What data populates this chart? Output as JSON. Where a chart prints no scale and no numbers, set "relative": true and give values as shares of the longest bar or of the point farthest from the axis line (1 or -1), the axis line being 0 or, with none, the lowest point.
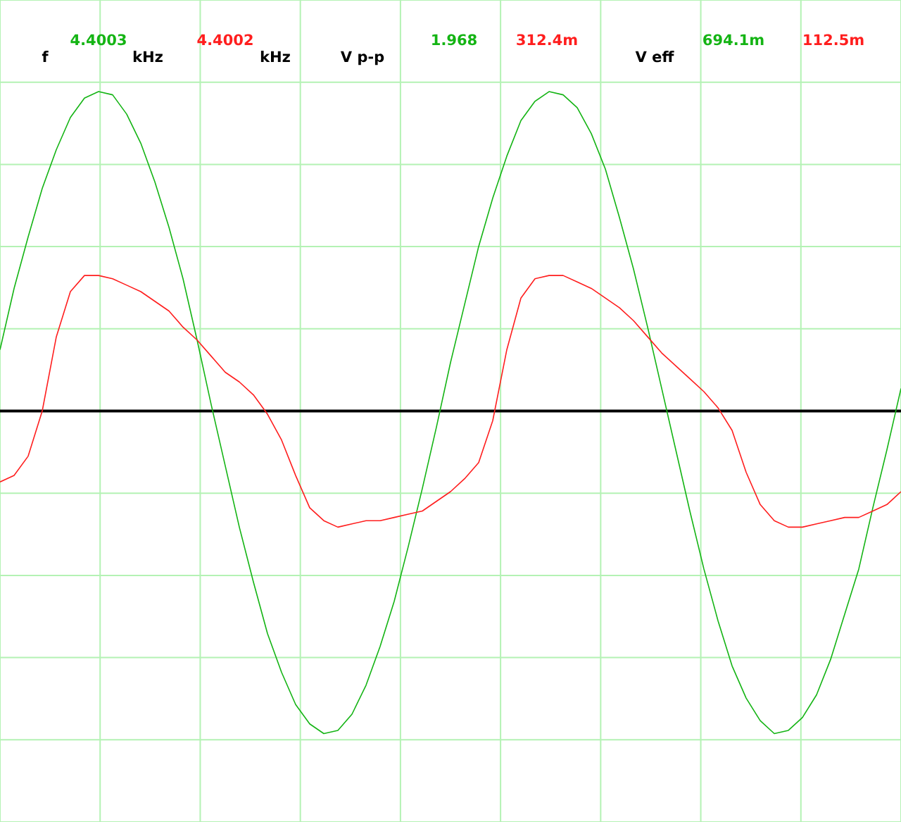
{
  "chart_data": {
    "type": "line",
    "relative": true,
    "grid": true,
    "categories": [
      null,
      null,
      null,
      null,
      null,
      null,
      null,
      null,
      null,
      null,
      null,
      null,
      null,
      null,
      null,
      null,
      null,
      null,
      null,
      null,
      null,
      null,
      null,
      null,
      null,
      null,
      null,
      null,
      null,
      null,
      null,
      null,
      null,
      null,
      null,
      null,
      null,
      null,
      null,
      null,
      null,
      null,
      null,
      null,
      null,
      null,
      null,
      null,
      null,
      null,
      null,
      null,
      null,
      null,
      null,
      null,
      null,
      null,
      null,
      null,
      null,
      null,
      null,
      null,
      null
    ],
    "series": [
      {
        "color": "#14b414",
        "values": [
          0.19,
          0.38,
          0.54,
          0.69,
          0.81,
          0.91,
          0.97,
          0.99,
          0.98,
          0.92,
          0.83,
          0.71,
          0.57,
          0.41,
          0.22,
          0.02,
          -0.17,
          -0.36,
          -0.53,
          -0.69,
          -0.81,
          -0.91,
          -0.97,
          -1.0,
          -0.99,
          -0.94,
          -0.85,
          -0.73,
          -0.59,
          -0.42,
          -0.24,
          -0.05,
          0.15,
          0.33,
          0.51,
          0.66,
          0.79,
          0.9,
          0.96,
          0.99,
          0.98,
          0.94,
          0.86,
          0.75,
          0.6,
          0.44,
          0.26,
          0.07,
          -0.12,
          -0.31,
          -0.49,
          -0.65,
          -0.79,
          -0.89,
          -0.96,
          -1.0,
          -0.99,
          -0.95,
          -0.88,
          -0.77,
          -0.63,
          -0.49,
          -0.3,
          -0.12,
          0.07
        ]
      },
      {
        "color": "#ff1e1e",
        "values": [
          -0.22,
          -0.2,
          -0.14,
          0.0,
          0.23,
          0.37,
          0.42,
          0.42,
          0.41,
          0.39,
          0.37,
          0.34,
          0.31,
          0.26,
          0.22,
          0.17,
          0.12,
          0.09,
          0.05,
          -0.01,
          -0.09,
          -0.2,
          -0.3,
          -0.34,
          -0.36,
          -0.35,
          -0.34,
          -0.34,
          -0.33,
          -0.32,
          -0.31,
          -0.28,
          -0.25,
          -0.21,
          -0.16,
          -0.03,
          0.19,
          0.35,
          0.41,
          0.42,
          0.42,
          0.4,
          0.38,
          0.35,
          0.32,
          0.28,
          0.23,
          0.18,
          0.14,
          0.1,
          0.06,
          0.01,
          -0.06,
          -0.19,
          -0.29,
          -0.34,
          -0.36,
          -0.36,
          -0.35,
          -0.34,
          -0.33,
          -0.33,
          -0.31,
          -0.29,
          -0.25
        ]
      }
    ],
    "annotations": [
      "f",
      "4.4003",
      "kHz",
      "4.4002",
      "kHz",
      "V p-p",
      "1.968",
      "312.4m",
      "V eff",
      "694.1m",
      "112.5m"
    ]
  }
}
